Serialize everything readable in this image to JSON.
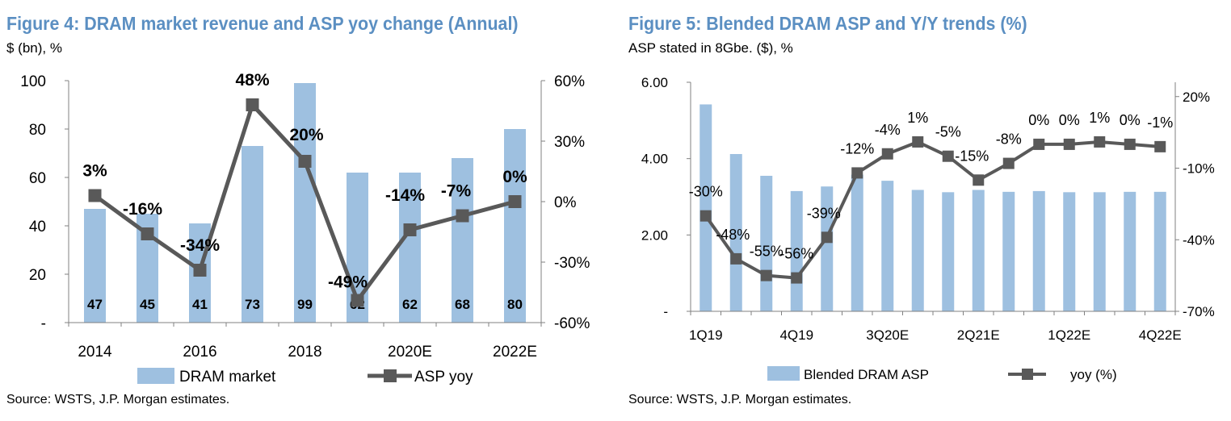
{
  "figures": [
    {
      "title": "Figure 4: DRAM market revenue and ASP yoy change (Annual)",
      "subtitle": "$ (bn), %",
      "source": "Source: WSTS, J.P. Morgan estimates.",
      "colors": {
        "bar": "#9ec0e0",
        "line": "#595959",
        "marker": "#595959"
      },
      "chart_data": {
        "type": "bar",
        "categories": [
          "2014",
          "2015",
          "2016",
          "2017",
          "2018",
          "2019",
          "2020E",
          "2021E",
          "2022E"
        ],
        "x_tick_labels": [
          "2014",
          "",
          "2016",
          "",
          "2018",
          "",
          "2020E",
          "",
          "2022E"
        ],
        "series": [
          {
            "name": "DRAM market",
            "type": "bar",
            "axis": "left",
            "values": [
              47,
              45,
              41,
              73,
              99,
              62,
              62,
              68,
              80
            ],
            "data_labels": [
              "47",
              "45",
              "41",
              "73",
              "99",
              "62",
              "62",
              "68",
              "80"
            ]
          },
          {
            "name": "ASP yoy",
            "type": "line",
            "axis": "right",
            "values": [
              3,
              -16,
              -34,
              48,
              20,
              -49,
              -14,
              -7,
              0
            ],
            "data_labels": [
              "3%",
              "-16%",
              "-34%",
              "48%",
              "20%",
              "-49%",
              "-14%",
              "-7%",
              "0%"
            ]
          }
        ],
        "left_axis": {
          "ylim": [
            0,
            100
          ],
          "ticks": [
            0,
            20,
            40,
            60,
            80,
            100
          ],
          "tick_labels": [
            "-",
            "20",
            "40",
            "60",
            "80",
            "100"
          ]
        },
        "right_axis": {
          "ylim": [
            -60,
            60
          ],
          "ticks": [
            -60,
            -30,
            0,
            30,
            60
          ],
          "tick_labels": [
            "-60%",
            "-30%",
            "0%",
            "30%",
            "60%"
          ]
        },
        "legend": {
          "position": "bottom",
          "entries": [
            "DRAM market",
            "ASP yoy"
          ]
        },
        "grid": false
      }
    },
    {
      "title": "Figure 5: Blended DRAM ASP and Y/Y trends (%)",
      "subtitle": "ASP stated in 8Gbe. ($), %",
      "source": "Source: WSTS, J.P. Morgan estimates.",
      "colors": {
        "bar": "#9ec0e0",
        "line": "#595959",
        "marker": "#595959"
      },
      "chart_data": {
        "type": "bar",
        "categories": [
          "1Q19",
          "2Q19",
          "3Q19",
          "4Q19",
          "1Q20",
          "2Q20",
          "3Q20E",
          "4Q20E",
          "1Q21E",
          "2Q21E",
          "3Q21E",
          "4Q21E",
          "1Q22E",
          "2Q22E",
          "3Q22E",
          "4Q22E"
        ],
        "x_tick_labels": [
          "1Q19",
          "",
          "",
          "4Q19",
          "",
          "",
          "3Q20E",
          "",
          "",
          "2Q21E",
          "",
          "",
          "1Q22E",
          "",
          "",
          "4Q22E"
        ],
        "series": [
          {
            "name": "Blended DRAM ASP",
            "type": "bar",
            "axis": "left",
            "values": [
              5.42,
              4.12,
              3.55,
              3.15,
              3.27,
              3.58,
              3.42,
              3.18,
              3.12,
              3.18,
              3.13,
              3.15,
              3.12,
              3.12,
              3.13,
              3.13
            ]
          },
          {
            "name": "yoy (%)",
            "type": "line",
            "axis": "right",
            "values": [
              -30,
              -48,
              -55,
              -56,
              -39,
              -12,
              -4,
              1,
              -5,
              -15,
              -8,
              0,
              0,
              1,
              0,
              -1
            ],
            "data_labels": [
              "-30%",
              "-48%",
              "-55%",
              "-56%",
              "-39%",
              "-12%",
              "-4%",
              "1%",
              "-5%",
              "-15%",
              "-8%",
              "0%",
              "0%",
              "1%",
              "0%",
              "-1%"
            ]
          }
        ],
        "left_axis": {
          "ylim": [
            0,
            6
          ],
          "ticks": [
            0,
            2,
            4,
            6
          ],
          "tick_labels": [
            "-",
            "2.00",
            "4.00",
            "6.00"
          ]
        },
        "right_axis": {
          "ylim": [
            -70,
            26
          ],
          "ticks": [
            -70,
            -40,
            -10,
            20
          ],
          "tick_labels": [
            "-70%",
            "-40%",
            "-10%",
            "20%"
          ]
        },
        "legend": {
          "position": "bottom",
          "entries": [
            "Blended DRAM ASP",
            "yoy (%)"
          ]
        },
        "grid": false
      }
    }
  ]
}
